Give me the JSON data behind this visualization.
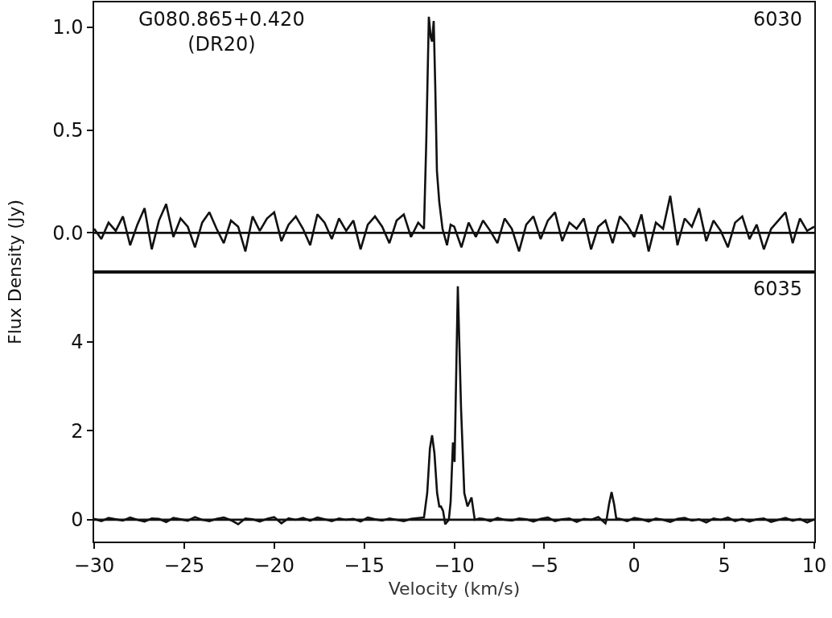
{
  "chart_data": [
    {
      "type": "line",
      "ylabel": "Flux Density (Jy)",
      "annotations": [
        "G080.865+0.420\n(DR20)",
        "6030"
      ],
      "xlim": [
        -30,
        10
      ],
      "ylim": [
        -0.19,
        1.12
      ],
      "yticks": [
        {
          "value": 0,
          "label": "0.0"
        },
        {
          "value": 0.5,
          "label": "0.5"
        },
        {
          "value": 1,
          "label": "1.0"
        }
      ],
      "tick_labels": "y",
      "grid": false,
      "legend": false,
      "ref_lines": [
        {
          "axis": "y",
          "value": 0,
          "color": "#111111"
        }
      ],
      "series": [
        {
          "color": "#111111",
          "x": [
            -30,
            -29.6,
            -29.2,
            -28.8,
            -28.4,
            -28,
            -27.6,
            -27.2,
            -26.8,
            -26.4,
            -26,
            -25.6,
            -25.2,
            -24.8,
            -24.4,
            -24,
            -23.6,
            -23.2,
            -22.8,
            -22.4,
            -22,
            -21.6,
            -21.2,
            -20.8,
            -20.4,
            -20,
            -19.6,
            -19.2,
            -18.8,
            -18.4,
            -18,
            -17.6,
            -17.2,
            -16.8,
            -16.4,
            -16,
            -15.6,
            -15.2,
            -14.8,
            -14.4,
            -14,
            -13.6,
            -13.2,
            -12.8,
            -12.4,
            -12,
            -11.68,
            -11.55,
            -11.41,
            -11.3,
            -11.23,
            -11.14,
            -11.05,
            -10.96,
            -10.83,
            -10.65,
            -10.4,
            -10.2,
            -10,
            -9.6,
            -9.2,
            -8.8,
            -8.4,
            -8,
            -7.6,
            -7.2,
            -6.8,
            -6.4,
            -6,
            -5.6,
            -5.2,
            -4.8,
            -4.4,
            -4,
            -3.6,
            -3.2,
            -2.8,
            -2.4,
            -2,
            -1.6,
            -1.2,
            -0.8,
            -0.4,
            0,
            0.4,
            0.8,
            1.2,
            1.6,
            2,
            2.4,
            2.8,
            3.2,
            3.6,
            4,
            4.4,
            4.8,
            5.2,
            5.6,
            6,
            6.4,
            6.8,
            7.2,
            7.6,
            8,
            8.4,
            8.8,
            9.2,
            9.6,
            10
          ],
          "values": [
            0.02,
            -0.03,
            0.05,
            0.01,
            0.08,
            -0.06,
            0.04,
            0.12,
            -0.08,
            0.06,
            0.14,
            -0.02,
            0.07,
            0.03,
            -0.07,
            0.05,
            0.1,
            0.02,
            -0.05,
            0.06,
            0.03,
            -0.09,
            0.08,
            0.01,
            0.07,
            0.1,
            -0.04,
            0.04,
            0.08,
            0.02,
            -0.06,
            0.09,
            0.05,
            -0.03,
            0.07,
            0.01,
            0.06,
            -0.08,
            0.04,
            0.08,
            0.03,
            -0.05,
            0.06,
            0.09,
            -0.02,
            0.05,
            0.02,
            0.45,
            1.05,
            0.95,
            0.93,
            1.03,
            0.7,
            0.3,
            0.15,
            0.02,
            -0.06,
            0.04,
            0.03,
            -0.07,
            0.05,
            -0.02,
            0.06,
            0.01,
            -0.05,
            0.07,
            0.02,
            -0.09,
            0.04,
            0.08,
            -0.03,
            0.06,
            0.1,
            -0.04,
            0.05,
            0.02,
            0.07,
            -0.08,
            0.03,
            0.06,
            -0.05,
            0.08,
            0.04,
            -0.02,
            0.09,
            -0.09,
            0.05,
            0.02,
            0.18,
            -0.06,
            0.07,
            0.03,
            0.12,
            -0.04,
            0.06,
            0.01,
            -0.07,
            0.05,
            0.08,
            -0.03,
            0.04,
            -0.08,
            0.02,
            0.06,
            0.1,
            -0.05,
            0.07,
            0.01,
            0.03
          ]
        }
      ]
    },
    {
      "type": "line",
      "xlabel": "Velocity (km/s)",
      "annotations": [
        "6035"
      ],
      "xlim": [
        -30,
        10
      ],
      "xticks": [
        {
          "value": -30,
          "label": "−30"
        },
        {
          "value": -25,
          "label": "−25"
        },
        {
          "value": -20,
          "label": "−20"
        },
        {
          "value": -15,
          "label": "−15"
        },
        {
          "value": -10,
          "label": "−10"
        },
        {
          "value": -5,
          "label": "−5"
        },
        0,
        5,
        10
      ],
      "ylim": [
        -0.49,
        5.57
      ],
      "yticks": [
        0,
        2,
        4
      ],
      "grid": false,
      "legend": false,
      "ref_lines": [
        {
          "axis": "y",
          "value": 0,
          "color": "#111111"
        }
      ],
      "series": [
        {
          "color": "#111111",
          "x": [
            -30,
            -29.6,
            -29.2,
            -28.8,
            -28.4,
            -28,
            -27.6,
            -27.2,
            -26.8,
            -26.4,
            -26,
            -25.6,
            -25.2,
            -24.8,
            -24.4,
            -24,
            -23.6,
            -23.2,
            -22.8,
            -22.4,
            -22,
            -21.6,
            -21.2,
            -20.8,
            -20.4,
            -20,
            -19.6,
            -19.2,
            -18.8,
            -18.4,
            -18,
            -17.6,
            -17.2,
            -16.8,
            -16.4,
            -16,
            -15.6,
            -15.2,
            -14.8,
            -14.4,
            -14,
            -13.6,
            -13.2,
            -12.8,
            -12.4,
            -12,
            -11.68,
            -11.5,
            -11.35,
            -11.23,
            -11.1,
            -10.95,
            -10.83,
            -10.74,
            -10.62,
            -10.5,
            -10.3,
            -10.2,
            -10.07,
            -9.98,
            -9.8,
            -9.62,
            -9.44,
            -9.26,
            -9.04,
            -8.86,
            -8.6,
            -8.4,
            -8,
            -7.6,
            -7.2,
            -6.8,
            -6.4,
            -6,
            -5.6,
            -5.2,
            -4.8,
            -4.4,
            -4,
            -3.6,
            -3.2,
            -2.8,
            -2.4,
            -2,
            -1.6,
            -1.53,
            -1.4,
            -1.26,
            -1.12,
            -1,
            -0.8,
            -0.4,
            0,
            0.4,
            0.8,
            1.2,
            1.6,
            2,
            2.4,
            2.8,
            3.2,
            3.6,
            4,
            4.4,
            4.8,
            5.2,
            5.6,
            6,
            6.4,
            6.8,
            7.2,
            7.6,
            8,
            8.4,
            8.8,
            9.2,
            9.6,
            10
          ],
          "values": [
            0.02,
            -0.03,
            0.04,
            0.01,
            -0.02,
            0.05,
            0.0,
            -0.04,
            0.03,
            0.02,
            -0.05,
            0.04,
            0.01,
            -0.02,
            0.06,
            0.0,
            -0.03,
            0.02,
            0.05,
            -0.01,
            -0.1,
            0.03,
            0.01,
            -0.04,
            0.02,
            0.06,
            -0.08,
            0.03,
            0.0,
            0.04,
            -0.02,
            0.05,
            0.01,
            -0.03,
            0.03,
            0.0,
            0.02,
            -0.04,
            0.05,
            0.01,
            -0.02,
            0.03,
            0.0,
            -0.03,
            0.02,
            0.04,
            0.05,
            0.6,
            1.6,
            1.9,
            1.5,
            0.6,
            0.3,
            0.3,
            0.2,
            -0.1,
            0.0,
            0.4,
            1.74,
            1.3,
            5.25,
            2.5,
            0.6,
            0.3,
            0.5,
            0.0,
            0.03,
            0.02,
            -0.03,
            0.04,
            0.0,
            -0.02,
            0.03,
            0.01,
            -0.04,
            0.02,
            0.05,
            -0.03,
            0.01,
            0.03,
            -0.05,
            0.02,
            0.0,
            0.06,
            -0.08,
            0.02,
            0.35,
            0.62,
            0.35,
            0.03,
            0.02,
            -0.03,
            0.04,
            0.01,
            -0.04,
            0.03,
            0.0,
            -0.05,
            0.02,
            0.04,
            -0.02,
            0.01,
            -0.06,
            0.03,
            0.0,
            0.05,
            -0.03,
            0.02,
            -0.04,
            0.01,
            0.03,
            -0.05,
            0.0,
            0.04,
            -0.02,
            0.02,
            -0.06,
            0.01
          ]
        }
      ]
    }
  ]
}
